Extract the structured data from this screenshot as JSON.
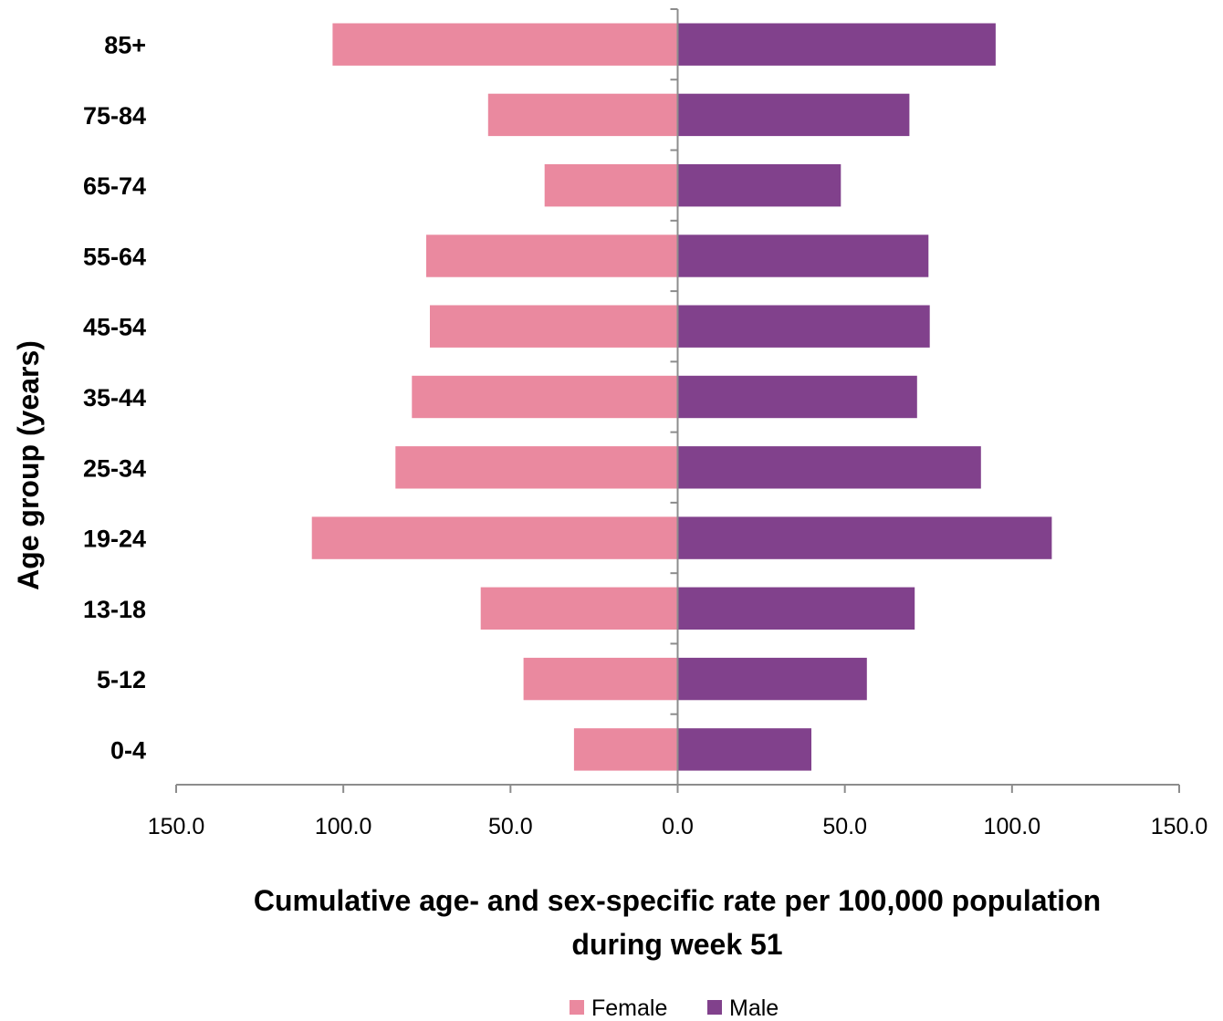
{
  "chart_data": {
    "type": "bar",
    "orientation": "horizontal",
    "layout": "population-pyramid",
    "categories": [
      "85+",
      "75-84",
      "65-74",
      "55-64",
      "45-54",
      "35-44",
      "25-34",
      "19-24",
      "13-18",
      "5-12",
      "0-4"
    ],
    "series": [
      {
        "name": "Female",
        "color": "#ea899f",
        "direction": "left",
        "values": [
          103.2,
          56.7,
          39.8,
          75.2,
          74.1,
          79.5,
          84.4,
          109.4,
          58.9,
          46.1,
          31.0
        ]
      },
      {
        "name": "Male",
        "color": "#81418c",
        "direction": "right",
        "values": [
          95.1,
          69.3,
          48.8,
          75.0,
          75.4,
          71.6,
          90.7,
          111.9,
          70.9,
          56.6,
          40.0
        ]
      }
    ],
    "x_tick_labels": [
      "150.0",
      "100.0",
      "50.0",
      "0.0",
      "50.0",
      "100.0",
      "150.0"
    ],
    "xlim": [
      -150,
      150
    ],
    "xlabel_lines": [
      "Cumulative age- and sex-specific rate per 100,000 population",
      "during week 51"
    ],
    "ylabel": "Age group (years)",
    "title": "",
    "grid": false,
    "legend_position": "bottom-center",
    "axis_color": "#8c8c8c"
  }
}
